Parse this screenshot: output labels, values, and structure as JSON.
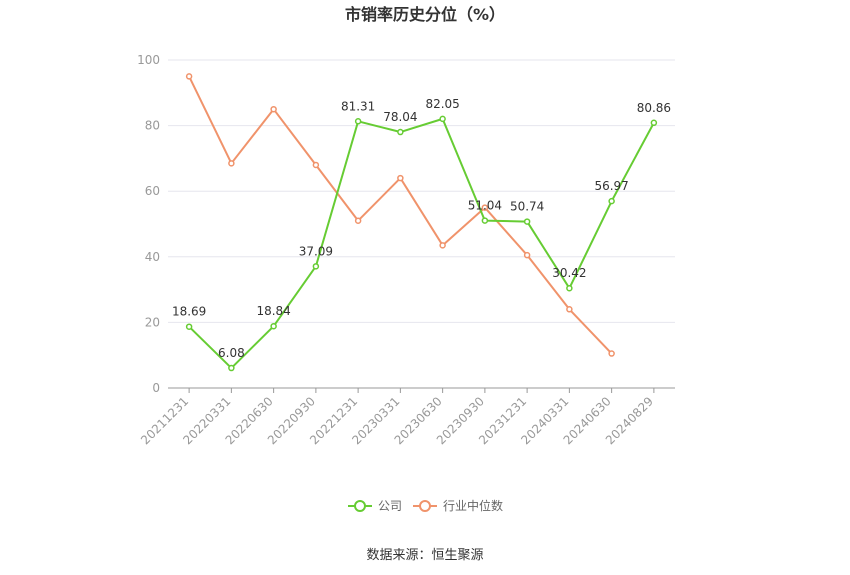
{
  "title": "市销率历史分位（%）",
  "source": "数据来源：恒生聚源",
  "legend": {
    "company": "公司",
    "industry": "行业中位数"
  },
  "colors": {
    "company": "#66cc33",
    "industry": "#f0936b",
    "grid": "#e6e6ee",
    "axis": "#999999"
  },
  "chart_data": {
    "type": "line",
    "title": "市销率历史分位（%）",
    "categories": [
      "20211231",
      "20220331",
      "20220630",
      "20220930",
      "20221231",
      "20230331",
      "20230630",
      "20230930",
      "20231231",
      "20240331",
      "20240630",
      "20240829"
    ],
    "ylim": [
      0,
      100
    ],
    "yticks": [
      0,
      20,
      40,
      60,
      80,
      100
    ],
    "grid": true,
    "legend_position": "bottom",
    "series": [
      {
        "name": "公司",
        "values": [
          18.69,
          6.08,
          18.84,
          37.09,
          81.31,
          78.04,
          82.05,
          51.04,
          50.74,
          30.42,
          56.97,
          80.86
        ],
        "labels": true
      },
      {
        "name": "行业中位数",
        "values": [
          95,
          68.5,
          85,
          68,
          51,
          64,
          43.5,
          55,
          40.5,
          24,
          10.5,
          null
        ],
        "labels": false
      }
    ]
  }
}
